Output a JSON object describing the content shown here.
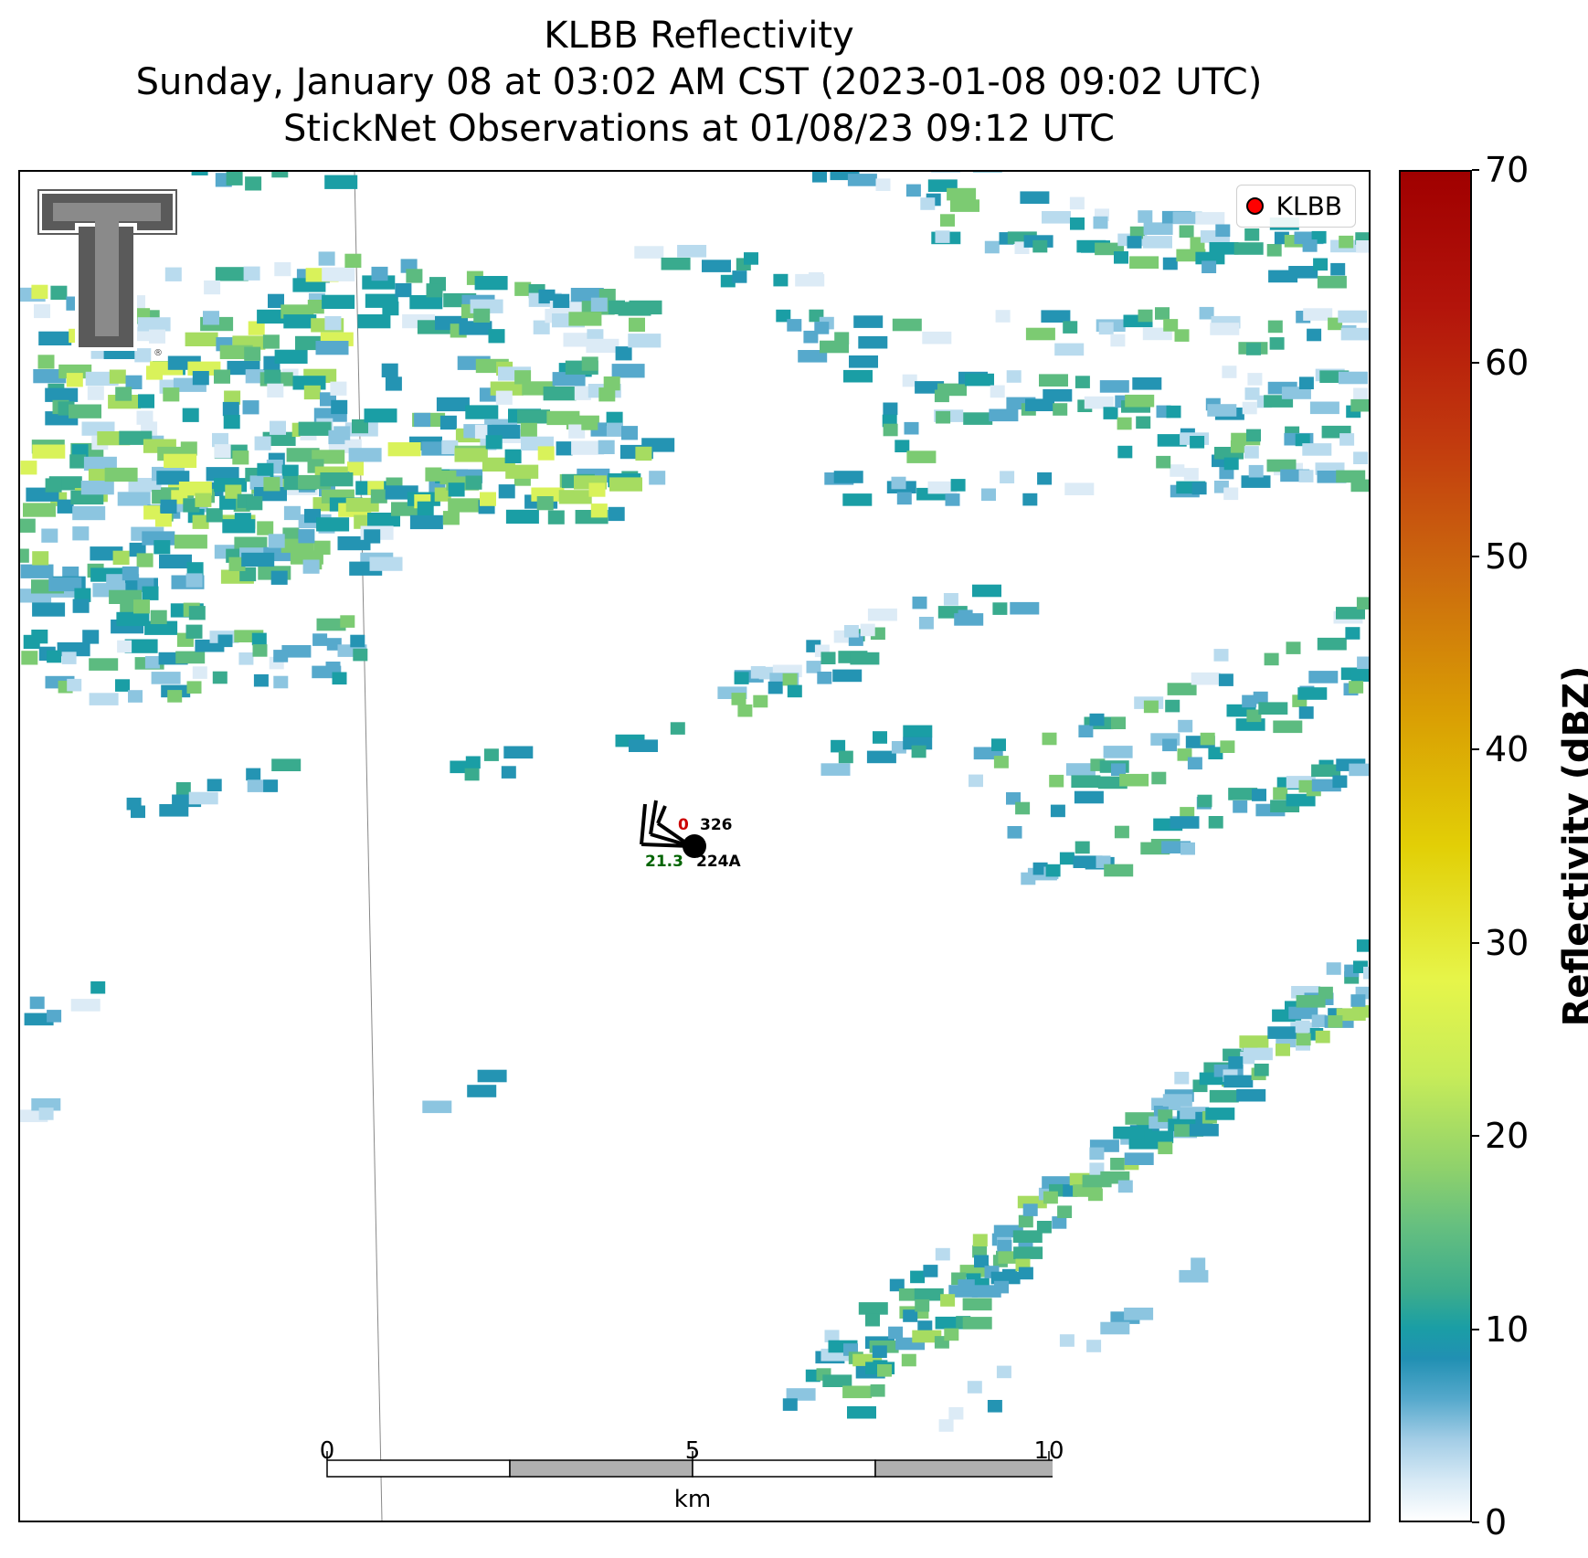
{
  "title": {
    "line1": "KLBB Reflectivity",
    "line2": "Sunday, January 08 at 03:02 AM CST (2023-01-08 09:02 UTC)",
    "line3": "StickNet Observations at 01/08/23 09:12 UTC"
  },
  "legend": {
    "label": "KLBB",
    "marker_color": "#ff0000"
  },
  "logo": {
    "name": "Texas Tech Double T",
    "registered_mark": "®"
  },
  "station": {
    "id": "224A",
    "value_red": "0",
    "value_black": "326",
    "value_green": "21.3",
    "colors": {
      "red": "#cc0000",
      "green": "#006400",
      "black": "#000000"
    }
  },
  "scalebar": {
    "ticks": [
      "0",
      "5",
      "10"
    ],
    "unit": "km",
    "colors": [
      "#ffffff",
      "#b0b0b0",
      "#ffffff",
      "#b0b0b0"
    ]
  },
  "colorbar": {
    "label": "Reflectivity (dBZ)",
    "min": 0,
    "max": 70,
    "ticks": [
      "0",
      "10",
      "20",
      "30",
      "40",
      "50",
      "60",
      "70"
    ]
  },
  "reflectivity_palette": [
    "#dcebf6",
    "#b9dbee",
    "#8cc5e0",
    "#56a9cc",
    "#2494b3",
    "#1a9ea5",
    "#39ab8e",
    "#5cbb80",
    "#7ccb72",
    "#a6dc61",
    "#d9f25a"
  ]
}
